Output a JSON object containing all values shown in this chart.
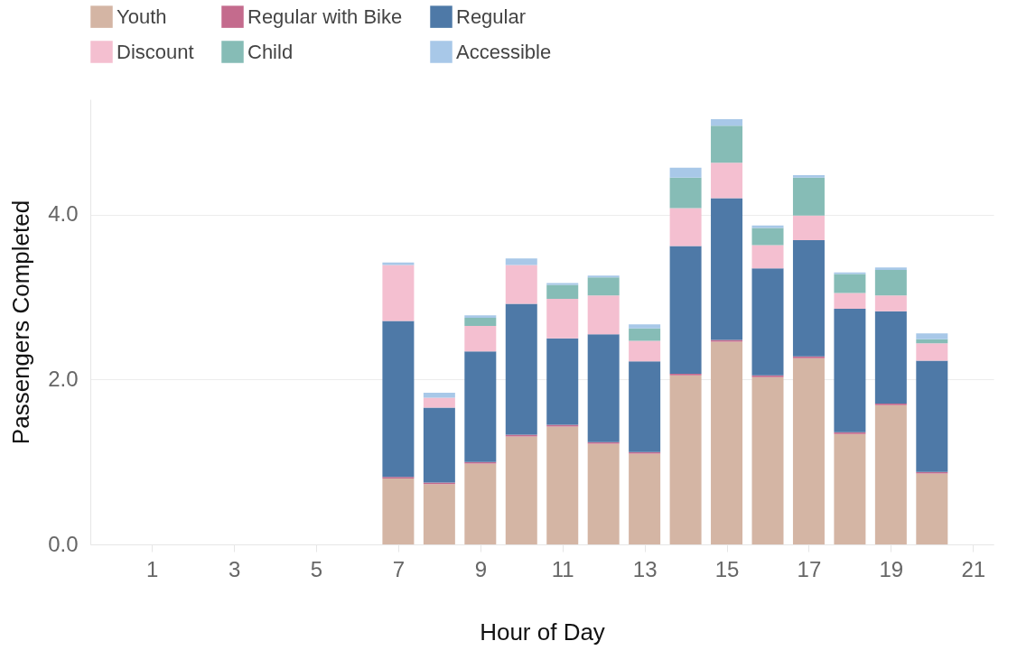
{
  "chart_data": {
    "type": "bar",
    "stacked": true,
    "xlabel": "Hour of Day",
    "ylabel": "Passengers Completed",
    "x": [
      7,
      8,
      9,
      10,
      11,
      12,
      13,
      14,
      15,
      16,
      17,
      18,
      19,
      20
    ],
    "series": [
      {
        "name": "Youth",
        "color": "#d4b5a4",
        "values": [
          0.8,
          0.73,
          0.98,
          1.31,
          1.43,
          1.22,
          1.1,
          2.05,
          2.46,
          2.03,
          2.26,
          1.34,
          1.69,
          0.86
        ]
      },
      {
        "name": "Regular with Bike",
        "color": "#c46b8d",
        "values": [
          0.02,
          0.02,
          0.02,
          0.02,
          0.02,
          0.02,
          0.02,
          0.02,
          0.02,
          0.02,
          0.02,
          0.02,
          0.02,
          0.02
        ]
      },
      {
        "name": "Regular",
        "color": "#4e79a7",
        "values": [
          1.89,
          0.91,
          1.34,
          1.59,
          1.05,
          1.31,
          1.1,
          1.55,
          1.72,
          1.3,
          1.41,
          1.5,
          1.12,
          1.35
        ]
      },
      {
        "name": "Discount",
        "color": "#f4bfd0",
        "values": [
          0.68,
          0.12,
          0.31,
          0.47,
          0.48,
          0.47,
          0.25,
          0.46,
          0.43,
          0.28,
          0.3,
          0.19,
          0.19,
          0.21
        ]
      },
      {
        "name": "Child",
        "color": "#86bcb6",
        "values": [
          0,
          0,
          0.1,
          0,
          0.17,
          0.22,
          0.15,
          0.37,
          0.45,
          0.21,
          0.46,
          0.23,
          0.31,
          0.05
        ]
      },
      {
        "name": "Accessible",
        "color": "#a8c8e8",
        "values": [
          0.03,
          0.06,
          0.03,
          0.08,
          0.02,
          0.02,
          0.05,
          0.12,
          0.08,
          0.03,
          0.03,
          0.02,
          0.03,
          0.07
        ]
      }
    ],
    "xlim": [
      -0.5,
      21.5
    ],
    "xticks": [
      1,
      3,
      5,
      7,
      9,
      11,
      13,
      15,
      17,
      19,
      21
    ],
    "ylim": [
      0,
      5.4
    ],
    "yticks": [
      {
        "value": 0,
        "label": "0.0"
      },
      {
        "value": 2,
        "label": "2.0"
      },
      {
        "value": 4,
        "label": "4.0"
      }
    ],
    "grid": "y",
    "legend": "top left"
  }
}
